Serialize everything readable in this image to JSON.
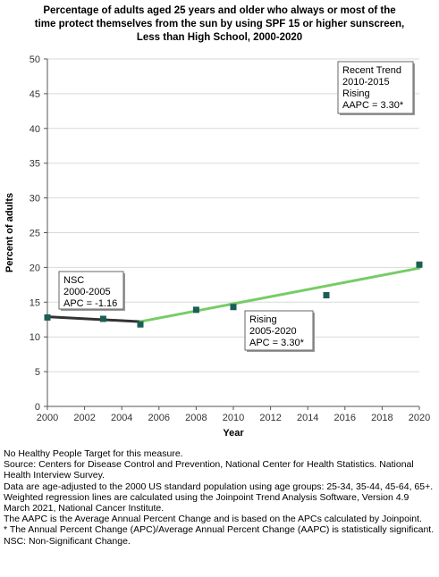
{
  "title_lines": [
    "Percentage of adults aged 25 years and older who always or most of the",
    "time protect themselves from the sun by using SPF 15 or higher sunscreen,",
    "Less than High School,  2000-2020"
  ],
  "chart_data": {
    "type": "scatter",
    "xlabel": "Year",
    "ylabel": "Percent of adults",
    "xlim": [
      2000,
      2020
    ],
    "ylim": [
      0,
      50
    ],
    "x_ticks": [
      2000,
      2002,
      2004,
      2006,
      2008,
      2010,
      2012,
      2014,
      2016,
      2018,
      2020
    ],
    "y_ticks": [
      0,
      5,
      10,
      15,
      20,
      25,
      30,
      35,
      40,
      45,
      50
    ],
    "grid": "horizontal",
    "points": [
      {
        "x": 2000,
        "y": 12.8
      },
      {
        "x": 2003,
        "y": 12.6
      },
      {
        "x": 2005,
        "y": 11.8
      },
      {
        "x": 2008,
        "y": 13.9
      },
      {
        "x": 2010,
        "y": 14.3
      },
      {
        "x": 2015,
        "y": 16.0
      },
      {
        "x": 2020,
        "y": 20.4
      }
    ],
    "trend_segments": [
      {
        "x": [
          2000,
          2005
        ],
        "y": [
          12.9,
          12.2
        ],
        "color": "#333333"
      },
      {
        "x": [
          2005,
          2020
        ],
        "y": [
          12.2,
          19.9
        ],
        "color": "#77cc66"
      }
    ],
    "marker_color": "#1a5e55",
    "annotations": [
      {
        "lines": [
          "NSC",
          "2000-2005",
          "APC = -1.16"
        ]
      },
      {
        "lines": [
          "Rising",
          "2005-2020",
          "APC =  3.30*"
        ]
      },
      {
        "lines": [
          "Recent Trend",
          "2010-2015",
          "Rising",
          "AAPC =  3.30*"
        ]
      }
    ]
  },
  "footnotes": [
    "No Healthy People Target for this measure.",
    "Source: Centers for Disease Control and Prevention, National Center for Health Statistics. National Health Interview Survey.",
    "Data are age-adjusted to the 2000 US standard population using age groups: 25-34, 35-44, 45-64, 65+.",
    "Weighted regression lines are calculated using the Joinpoint Trend Analysis Software, Version 4.9 March 2021, National Cancer Institute.",
    "The AAPC is the Average Annual Percent Change and is based on the APCs calculated by Joinpoint.",
    "* The Annual Percent Change (APC)/Average Annual Percent Change (AAPC) is statistically significant.",
    "NSC: Non-Significant Change."
  ]
}
